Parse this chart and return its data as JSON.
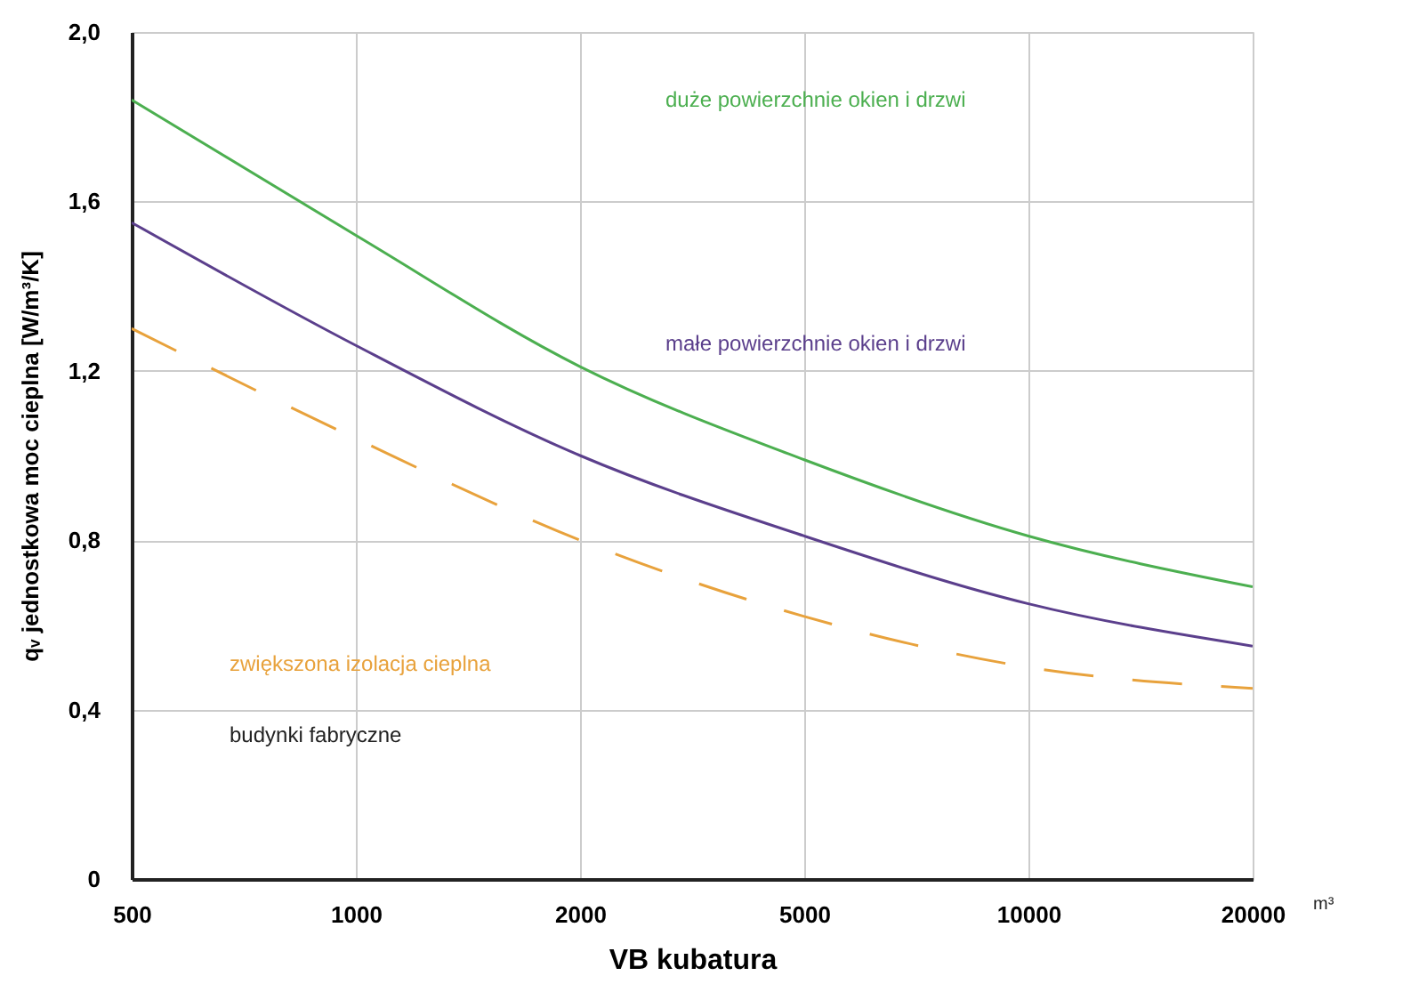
{
  "chart_data": {
    "type": "line",
    "xlabel": "VB kubatura",
    "ylabel": "qᵥ jednostkowa moc cieplna [W/m³/K]",
    "categories": [
      "500",
      "1000",
      "2000",
      "5000",
      "10000",
      "20000"
    ],
    "series": [
      {
        "name": "duże powierzchnie okien i drzwi",
        "color": "#4caf50",
        "values": [
          1.84,
          1.52,
          1.21,
          0.99,
          0.81,
          0.69
        ]
      },
      {
        "name": "małe powierzchnie okien i drzwi",
        "color": "#5b3f8c",
        "values": [
          1.55,
          1.26,
          1.0,
          0.81,
          0.65,
          0.55
        ]
      },
      {
        "name": "zwiększona izolacja cieplna",
        "color": "#e8a23c",
        "values": [
          1.3,
          1.04,
          0.8,
          0.62,
          0.5,
          0.45
        ],
        "line_style": "dashed"
      }
    ],
    "annotations": [
      "budynki fabryczne",
      "m³"
    ],
    "ylim": [
      0,
      2.0
    ],
    "yticks": [
      0,
      {
        "value": 0.4,
        "label": "0,4"
      },
      {
        "value": 0.8,
        "label": "0,8"
      },
      {
        "value": 1.2,
        "label": "1,2"
      },
      {
        "value": 1.6,
        "label": "1,6"
      },
      {
        "value": 2.0,
        "label": "2,0"
      }
    ],
    "grid": true,
    "legend": false,
    "marker": "none"
  }
}
